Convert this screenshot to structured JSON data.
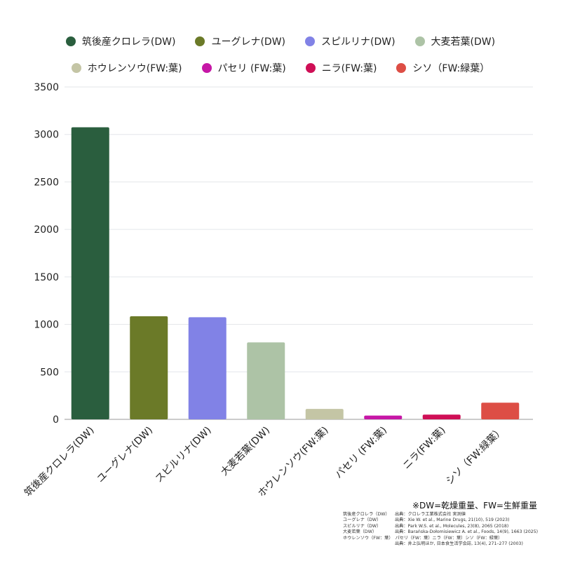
{
  "chart_data": {
    "type": "bar",
    "categories": [
      "筑後産クロレラ(DW)",
      "ユーグレナ(DW)",
      "スピルリナ(DW)",
      "大麦若葉(DW)",
      "ホウレンソウ(FW:葉)",
      "パセリ (FW:葉)",
      "ニラ(FW:葉)",
      "シソ（FW:緑葉）"
    ],
    "values": [
      3075,
      1085,
      1075,
      810,
      110,
      40,
      50,
      175
    ],
    "colors": [
      "#2a5e3e",
      "#6b7a28",
      "#8182e6",
      "#adc3a6",
      "#c4c5a5",
      "#c617a6",
      "#cf0f56",
      "#dd4e45"
    ],
    "ylim": [
      0,
      3500
    ],
    "yticks": [
      "0",
      "500",
      "1000",
      "1500",
      "2000",
      "2500",
      "3000",
      "3500"
    ],
    "grid": true,
    "legend_position": "top-center",
    "title": "",
    "xlabel": "",
    "ylabel": ""
  },
  "legend": {
    "row1": [
      "筑後産クロレラ(DW)",
      "ユーグレナ(DW)",
      "スピルリナ(DW)",
      "大麦若葉(DW)"
    ],
    "row2": [
      "ホウレンソウ(FW:葉)",
      "パセリ (FW:葉)",
      "ニラ(FW:葉)",
      "シソ（FW:緑葉）"
    ]
  },
  "footnote": "※DW=乾燥重量、FW=生鮮重量",
  "sources": [
    {
      "name": "筑後産クロレラ（DW）",
      "text": "出典：クロレラ工業株式会社 実測値"
    },
    {
      "name": "ユーグレナ（DW）",
      "text": "出典：Xie W. et al., Marine Drugs, 21(10), 519 (2023)"
    },
    {
      "name": "スピルリナ（DW）",
      "text": "出典：Park W.S. et al., Molecules, 23(8), 2065 (2018)"
    },
    {
      "name": "大麦若葉（DW）",
      "text": "出典：Barańska-Dołomisiewicz A. et al., Foods, 14(9), 1663 (2025)"
    },
    {
      "name": "ホウレンソウ（FW：葉）",
      "text": "パセリ（FW：葉）ニラ（FW：葉）シソ（FW：緑葉）"
    },
    {
      "name": "",
      "text": "出典：井上弘明ほか, 日本食生活学会誌, 13(4), 271–277 (2003)"
    }
  ]
}
